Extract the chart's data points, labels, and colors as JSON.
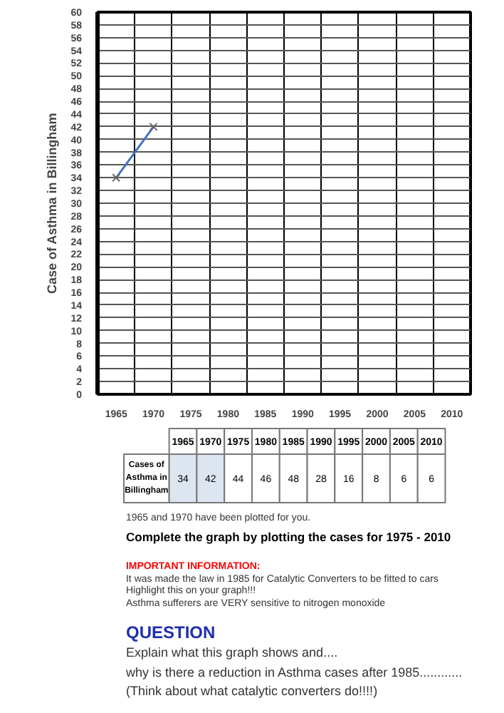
{
  "chart_data": {
    "type": "line",
    "ylabel": "Case of Asthma in Billingham",
    "categories": [
      "1965",
      "1970",
      "1975",
      "1980",
      "1985",
      "1990",
      "1995",
      "2000",
      "2005",
      "2010"
    ],
    "series": [
      {
        "color": "#4472c4",
        "values": [
          34,
          42,
          null,
          null,
          null,
          null,
          null,
          null,
          null,
          null
        ]
      }
    ],
    "ylim": [
      0,
      60
    ],
    "yticks": [
      0,
      2,
      4,
      6,
      8,
      10,
      12,
      14,
      16,
      18,
      20,
      22,
      24,
      26,
      28,
      30,
      32,
      34,
      36,
      38,
      40,
      42,
      44,
      46,
      48,
      50,
      52,
      54,
      56,
      58,
      60
    ],
    "grid": true,
    "marker": "cross",
    "line_style": "solid",
    "annotations": [
      "Cases of Asthma in Billingham",
      "34",
      "42",
      "44",
      "46",
      "48",
      "28",
      "16",
      "8",
      "6",
      "6",
      "1965 and 1970 have been plotted for you.",
      "Complete the graph by plotting the cases for 1975 - 2010",
      "IMPORTANT INFORMATION:",
      "It was made the law in 1985 for Catalytic Converters to be fitted to cars",
      "Highlight this on your graph!!!",
      "Asthma sufferers are VERY sensitive to nitrogen monoxide",
      "QUESTION",
      "Explain what this graph shows and....",
      "why is there a reduction in Asthma cases after 1985............",
      "(Think about what catalytic converters do!!!!)"
    ]
  }
}
